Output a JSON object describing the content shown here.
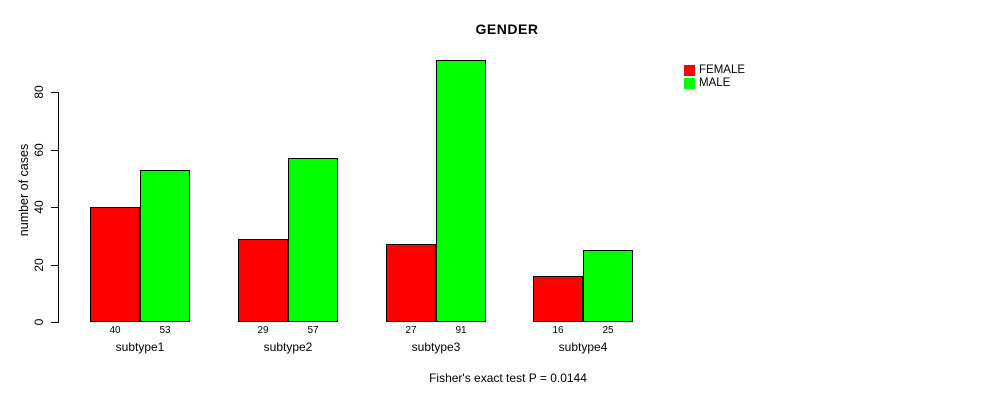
{
  "chart_data": {
    "type": "bar",
    "title": "GENDER",
    "xlabel": "",
    "ylabel": "number of cases",
    "categories": [
      "subtype1",
      "subtype2",
      "subtype3",
      "subtype4"
    ],
    "series": [
      {
        "name": "FEMALE",
        "color": "#ff0000",
        "values": [
          40,
          29,
          27,
          16
        ]
      },
      {
        "name": "MALE",
        "color": "#00ff00",
        "values": [
          53,
          57,
          91,
          25
        ]
      }
    ],
    "ylim": [
      0,
      80
    ],
    "yticks": [
      0,
      20,
      40,
      60,
      80
    ],
    "bar_value_labels": true,
    "grid": false,
    "legend_position": "top-right",
    "annotation": "Fisher's exact test P = 0.0144",
    "axis_color": "#000000",
    "background_color": "#ffffff"
  }
}
